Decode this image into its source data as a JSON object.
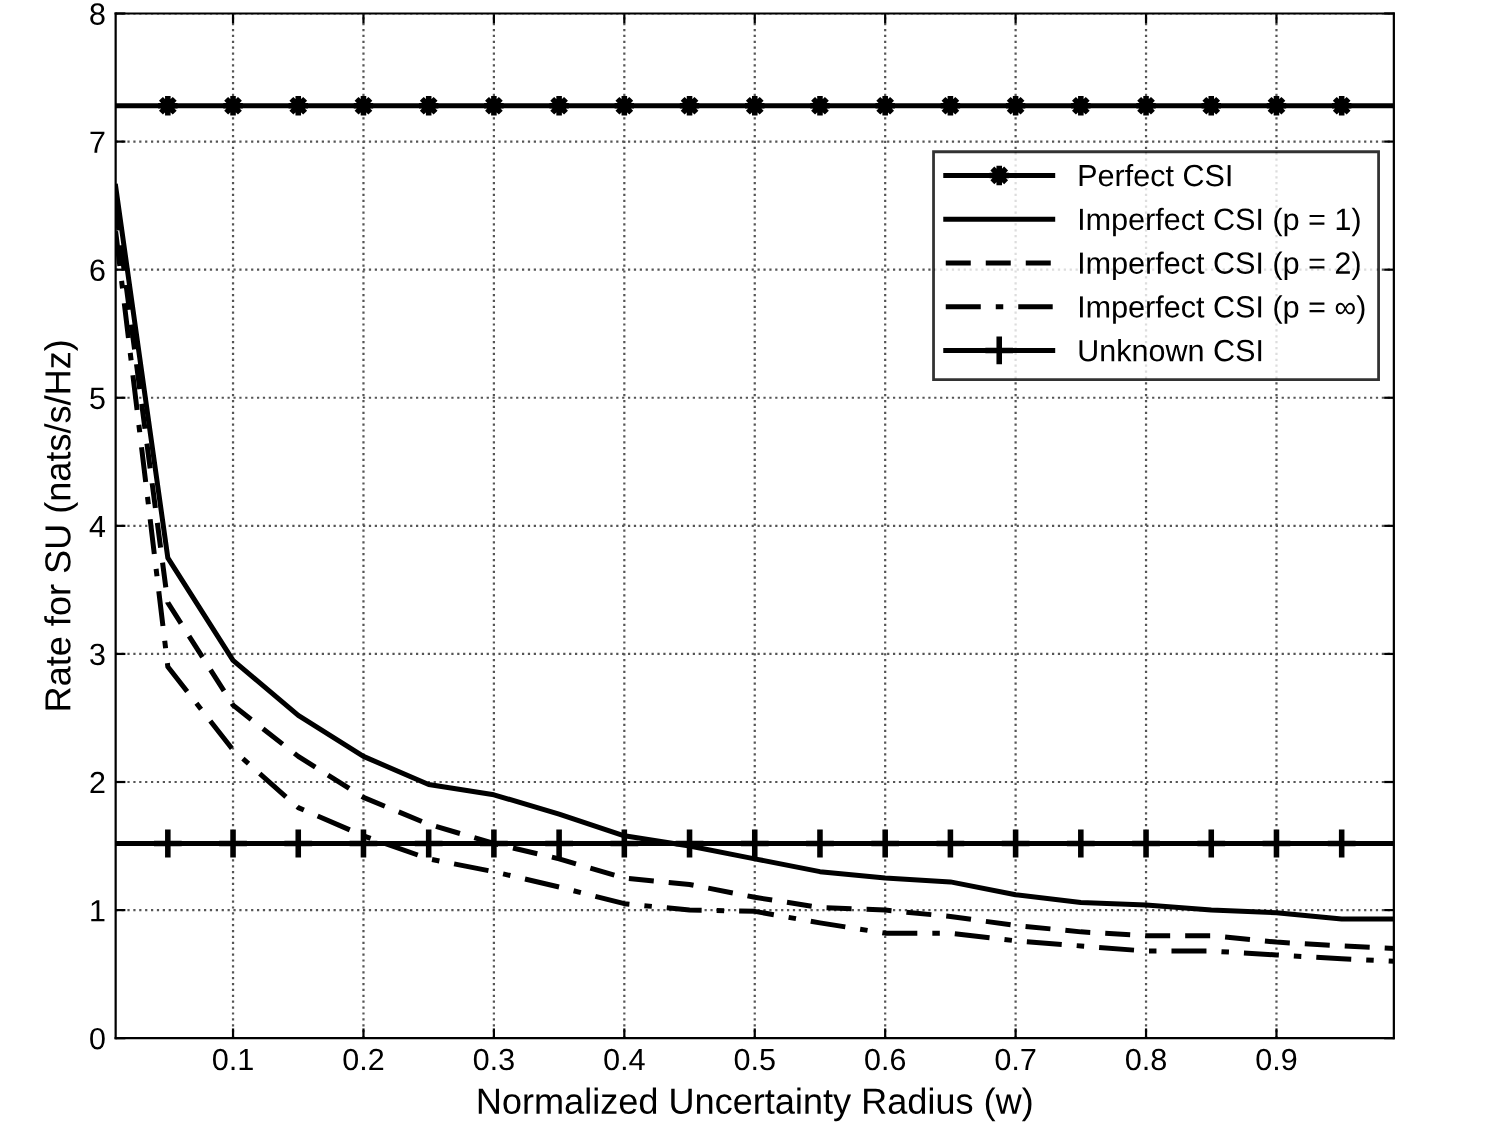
{
  "chart_data": {
    "type": "line",
    "xlabel": "Normalized Uncertainty Radius (w)",
    "ylabel": "Rate for SU (nats/s/Hz)",
    "x": [
      0.01,
      0.05,
      0.1,
      0.15,
      0.2,
      0.25,
      0.3,
      0.35,
      0.4,
      0.45,
      0.5,
      0.55,
      0.6,
      0.65,
      0.7,
      0.75,
      0.8,
      0.85,
      0.9,
      0.95,
      0.99
    ],
    "series": [
      {
        "name": "Perfect CSI",
        "color": "#000000",
        "marker": "star",
        "line_style": "solid",
        "values": [
          7.28,
          7.28,
          7.28,
          7.28,
          7.28,
          7.28,
          7.28,
          7.28,
          7.28,
          7.28,
          7.28,
          7.28,
          7.28,
          7.28,
          7.28,
          7.28,
          7.28,
          7.28,
          7.28,
          7.28,
          7.28
        ]
      },
      {
        "name": "Imperfect CSI (p = 1)",
        "color": "#000000",
        "marker": "none",
        "line_style": "solid",
        "values": [
          6.65,
          3.75,
          2.95,
          2.52,
          2.2,
          1.98,
          1.9,
          1.75,
          1.58,
          1.5,
          1.4,
          1.3,
          1.25,
          1.22,
          1.12,
          1.06,
          1.04,
          1.0,
          0.98,
          0.93,
          0.93
        ]
      },
      {
        "name": "Imperfect CSI (p = 2)",
        "color": "#000000",
        "marker": "none",
        "line_style": "dashed",
        "values": [
          6.5,
          3.4,
          2.6,
          2.2,
          1.88,
          1.67,
          1.52,
          1.4,
          1.25,
          1.2,
          1.1,
          1.02,
          1.0,
          0.95,
          0.88,
          0.83,
          0.8,
          0.8,
          0.75,
          0.72,
          0.7
        ]
      },
      {
        "name": "Imperfect CSI (p = ∞)",
        "color": "#000000",
        "marker": "none",
        "line_style": "dashdot",
        "values": [
          6.3,
          2.9,
          2.25,
          1.8,
          1.58,
          1.4,
          1.3,
          1.18,
          1.05,
          1.0,
          0.99,
          0.9,
          0.82,
          0.82,
          0.76,
          0.72,
          0.68,
          0.68,
          0.65,
          0.62,
          0.6
        ]
      },
      {
        "name": "Unknown CSI",
        "color": "#000000",
        "marker": "cross",
        "line_style": "solid",
        "values": [
          1.52,
          1.52,
          1.52,
          1.52,
          1.52,
          1.52,
          1.52,
          1.52,
          1.52,
          1.52,
          1.52,
          1.52,
          1.52,
          1.52,
          1.52,
          1.52,
          1.52,
          1.52,
          1.52,
          1.52,
          1.52
        ]
      }
    ],
    "xlim": [
      0.01,
      0.99
    ],
    "ylim": [
      0,
      8
    ],
    "xticks": [
      0.1,
      0.2,
      0.3,
      0.4,
      0.5,
      0.6,
      0.7,
      0.8,
      0.9
    ],
    "yticks": [
      0,
      1,
      2,
      3,
      4,
      5,
      6,
      7,
      8
    ],
    "grid": true,
    "legend": "top right"
  }
}
